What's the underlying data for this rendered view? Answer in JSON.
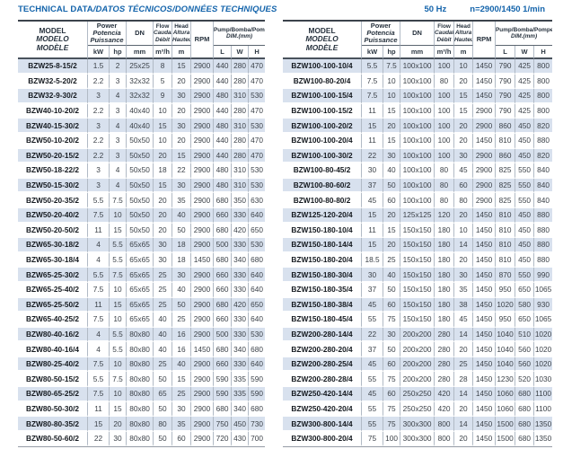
{
  "header_bar": {
    "title_main": "TECHNICAL DATA",
    "title_rest": "/DATOS TÉCNICOS/DONNÉES TECHNIQUES",
    "frequency": "50 Hz",
    "speed": "n=2900/1450 1/min",
    "accent_color": "#1464ab"
  },
  "columns": {
    "model": {
      "lines": [
        "MODEL",
        "MODELO",
        "MODÈLE"
      ]
    },
    "power": {
      "lines": [
        "Power",
        "Potencia",
        "Puissance"
      ],
      "units": [
        "kW",
        "hp"
      ]
    },
    "dn": {
      "label": "DN",
      "unit": "mm"
    },
    "flow": {
      "lines": [
        "Flow",
        "Caudal",
        "Débit"
      ],
      "unit": "m³/h"
    },
    "head": {
      "lines": [
        "Head",
        "Altura",
        "Hauteur"
      ],
      "unit": "m"
    },
    "rpm": {
      "label": "RPM"
    },
    "dim": {
      "lines": [
        "Pump/Bomba/Pompe",
        "DIM.(mm)"
      ],
      "units": [
        "L",
        "W",
        "H"
      ]
    }
  },
  "tables": [
    {
      "id": "left",
      "rows": [
        [
          "BZW25-8-15/2",
          "1.5",
          "2",
          "25x25",
          "8",
          "15",
          "2900",
          "440",
          "280",
          "470"
        ],
        [
          "BZW32-5-20/2",
          "2.2",
          "3",
          "32x32",
          "5",
          "20",
          "2900",
          "440",
          "280",
          "470"
        ],
        [
          "BZW32-9-30/2",
          "3",
          "4",
          "32x32",
          "9",
          "30",
          "2900",
          "480",
          "310",
          "530"
        ],
        [
          "BZW40-10-20/2",
          "2.2",
          "3",
          "40x40",
          "10",
          "20",
          "2900",
          "440",
          "280",
          "470"
        ],
        [
          "BZW40-15-30/2",
          "3",
          "4",
          "40x40",
          "15",
          "30",
          "2900",
          "480",
          "310",
          "530"
        ],
        [
          "BZW50-10-20/2",
          "2.2",
          "3",
          "50x50",
          "10",
          "20",
          "2900",
          "440",
          "280",
          "470"
        ],
        [
          "BZW50-20-15/2",
          "2.2",
          "3",
          "50x50",
          "20",
          "15",
          "2900",
          "440",
          "280",
          "470"
        ],
        [
          "BZW50-18-22/2",
          "3",
          "4",
          "50x50",
          "18",
          "22",
          "2900",
          "480",
          "310",
          "530"
        ],
        [
          "BZW50-15-30/2",
          "3",
          "4",
          "50x50",
          "15",
          "30",
          "2900",
          "480",
          "310",
          "530"
        ],
        [
          "BZW50-20-35/2",
          "5.5",
          "7.5",
          "50x50",
          "20",
          "35",
          "2900",
          "680",
          "350",
          "630"
        ],
        [
          "BZW50-20-40/2",
          "7.5",
          "10",
          "50x50",
          "20",
          "40",
          "2900",
          "660",
          "330",
          "640"
        ],
        [
          "BZW50-20-50/2",
          "11",
          "15",
          "50x50",
          "20",
          "50",
          "2900",
          "680",
          "420",
          "650"
        ],
        [
          "BZW65-30-18/2",
          "4",
          "5.5",
          "65x65",
          "30",
          "18",
          "2900",
          "500",
          "330",
          "530"
        ],
        [
          "BZW65-30-18/4",
          "4",
          "5.5",
          "65x65",
          "30",
          "18",
          "1450",
          "680",
          "340",
          "680"
        ],
        [
          "BZW65-25-30/2",
          "5.5",
          "7.5",
          "65x65",
          "25",
          "30",
          "2900",
          "660",
          "330",
          "640"
        ],
        [
          "BZW65-25-40/2",
          "7.5",
          "10",
          "65x65",
          "25",
          "40",
          "2900",
          "660",
          "330",
          "640"
        ],
        [
          "BZW65-25-50/2",
          "11",
          "15",
          "65x65",
          "25",
          "50",
          "2900",
          "680",
          "420",
          "650"
        ],
        [
          "BZW65-40-25/2",
          "7.5",
          "10",
          "65x65",
          "40",
          "25",
          "2900",
          "660",
          "330",
          "640"
        ],
        [
          "BZW80-40-16/2",
          "4",
          "5.5",
          "80x80",
          "40",
          "16",
          "2900",
          "500",
          "330",
          "530"
        ],
        [
          "BZW80-40-16/4",
          "4",
          "5.5",
          "80x80",
          "40",
          "16",
          "1450",
          "680",
          "340",
          "680"
        ],
        [
          "BZW80-25-40/2",
          "7.5",
          "10",
          "80x80",
          "25",
          "40",
          "2900",
          "660",
          "330",
          "640"
        ],
        [
          "BZW80-50-15/2",
          "5.5",
          "7.5",
          "80x80",
          "50",
          "15",
          "2900",
          "590",
          "335",
          "590"
        ],
        [
          "BZW80-65-25/2",
          "7.5",
          "10",
          "80x80",
          "65",
          "25",
          "2900",
          "590",
          "335",
          "590"
        ],
        [
          "BZW80-50-30/2",
          "11",
          "15",
          "80x80",
          "50",
          "30",
          "2900",
          "680",
          "340",
          "680"
        ],
        [
          "BZW80-80-35/2",
          "15",
          "20",
          "80x80",
          "80",
          "35",
          "2900",
          "750",
          "450",
          "730"
        ],
        [
          "BZW80-50-60/2",
          "22",
          "30",
          "80x80",
          "50",
          "60",
          "2900",
          "720",
          "430",
          "700"
        ]
      ]
    },
    {
      "id": "right",
      "rows": [
        [
          "BZW100-100-10/4",
          "5.5",
          "7.5",
          "100x100",
          "100",
          "10",
          "1450",
          "790",
          "425",
          "800"
        ],
        [
          "BZW100-80-20/4",
          "7.5",
          "10",
          "100x100",
          "80",
          "20",
          "1450",
          "790",
          "425",
          "800"
        ],
        [
          "BZW100-100-15/4",
          "7.5",
          "10",
          "100x100",
          "100",
          "15",
          "1450",
          "790",
          "425",
          "800"
        ],
        [
          "BZW100-100-15/2",
          "11",
          "15",
          "100x100",
          "100",
          "15",
          "2900",
          "790",
          "425",
          "800"
        ],
        [
          "BZW100-100-20/2",
          "15",
          "20",
          "100x100",
          "100",
          "20",
          "2900",
          "860",
          "450",
          "820"
        ],
        [
          "BZW100-100-20/4",
          "11",
          "15",
          "100x100",
          "100",
          "20",
          "1450",
          "810",
          "450",
          "880"
        ],
        [
          "BZW100-100-30/2",
          "22",
          "30",
          "100x100",
          "100",
          "30",
          "2900",
          "860",
          "450",
          "820"
        ],
        [
          "BZW100-80-45/2",
          "30",
          "40",
          "100x100",
          "80",
          "45",
          "2900",
          "825",
          "550",
          "840"
        ],
        [
          "BZW100-80-60/2",
          "37",
          "50",
          "100x100",
          "80",
          "60",
          "2900",
          "825",
          "550",
          "840"
        ],
        [
          "BZW100-80-80/2",
          "45",
          "60",
          "100x100",
          "80",
          "80",
          "2900",
          "825",
          "550",
          "840"
        ],
        [
          "BZW125-120-20/4",
          "15",
          "20",
          "125x125",
          "120",
          "20",
          "1450",
          "810",
          "450",
          "880"
        ],
        [
          "BZW150-180-10/4",
          "11",
          "15",
          "150x150",
          "180",
          "10",
          "1450",
          "810",
          "450",
          "880"
        ],
        [
          "BZW150-180-14/4",
          "15",
          "20",
          "150x150",
          "180",
          "14",
          "1450",
          "810",
          "450",
          "880"
        ],
        [
          "BZW150-180-20/4",
          "18.5",
          "25",
          "150x150",
          "180",
          "20",
          "1450",
          "810",
          "450",
          "880"
        ],
        [
          "BZW150-180-30/4",
          "30",
          "40",
          "150x150",
          "180",
          "30",
          "1450",
          "870",
          "550",
          "990"
        ],
        [
          "BZW150-180-35/4",
          "37",
          "50",
          "150x150",
          "180",
          "35",
          "1450",
          "950",
          "650",
          "1065"
        ],
        [
          "BZW150-180-38/4",
          "45",
          "60",
          "150x150",
          "180",
          "38",
          "1450",
          "1020",
          "580",
          "930"
        ],
        [
          "BZW150-180-45/4",
          "55",
          "75",
          "150x150",
          "180",
          "45",
          "1450",
          "950",
          "650",
          "1065"
        ],
        [
          "BZW200-280-14/4",
          "22",
          "30",
          "200x200",
          "280",
          "14",
          "1450",
          "1040",
          "510",
          "1020"
        ],
        [
          "BZW200-280-20/4",
          "37",
          "50",
          "200x200",
          "280",
          "20",
          "1450",
          "1040",
          "560",
          "1020"
        ],
        [
          "BZW200-280-25/4",
          "45",
          "60",
          "200x200",
          "280",
          "25",
          "1450",
          "1040",
          "560",
          "1020"
        ],
        [
          "BZW200-280-28/4",
          "55",
          "75",
          "200x200",
          "280",
          "28",
          "1450",
          "1230",
          "520",
          "1030"
        ],
        [
          "BZW250-420-14/4",
          "45",
          "60",
          "250x250",
          "420",
          "14",
          "1450",
          "1060",
          "680",
          "1100"
        ],
        [
          "BZW250-420-20/4",
          "55",
          "75",
          "250x250",
          "420",
          "20",
          "1450",
          "1060",
          "680",
          "1100"
        ],
        [
          "BZW300-800-14/4",
          "55",
          "75",
          "300x300",
          "800",
          "14",
          "1450",
          "1500",
          "680",
          "1350"
        ],
        [
          "BZW300-800-20/4",
          "75",
          "100",
          "300x300",
          "800",
          "20",
          "1450",
          "1500",
          "680",
          "1350"
        ]
      ]
    }
  ]
}
